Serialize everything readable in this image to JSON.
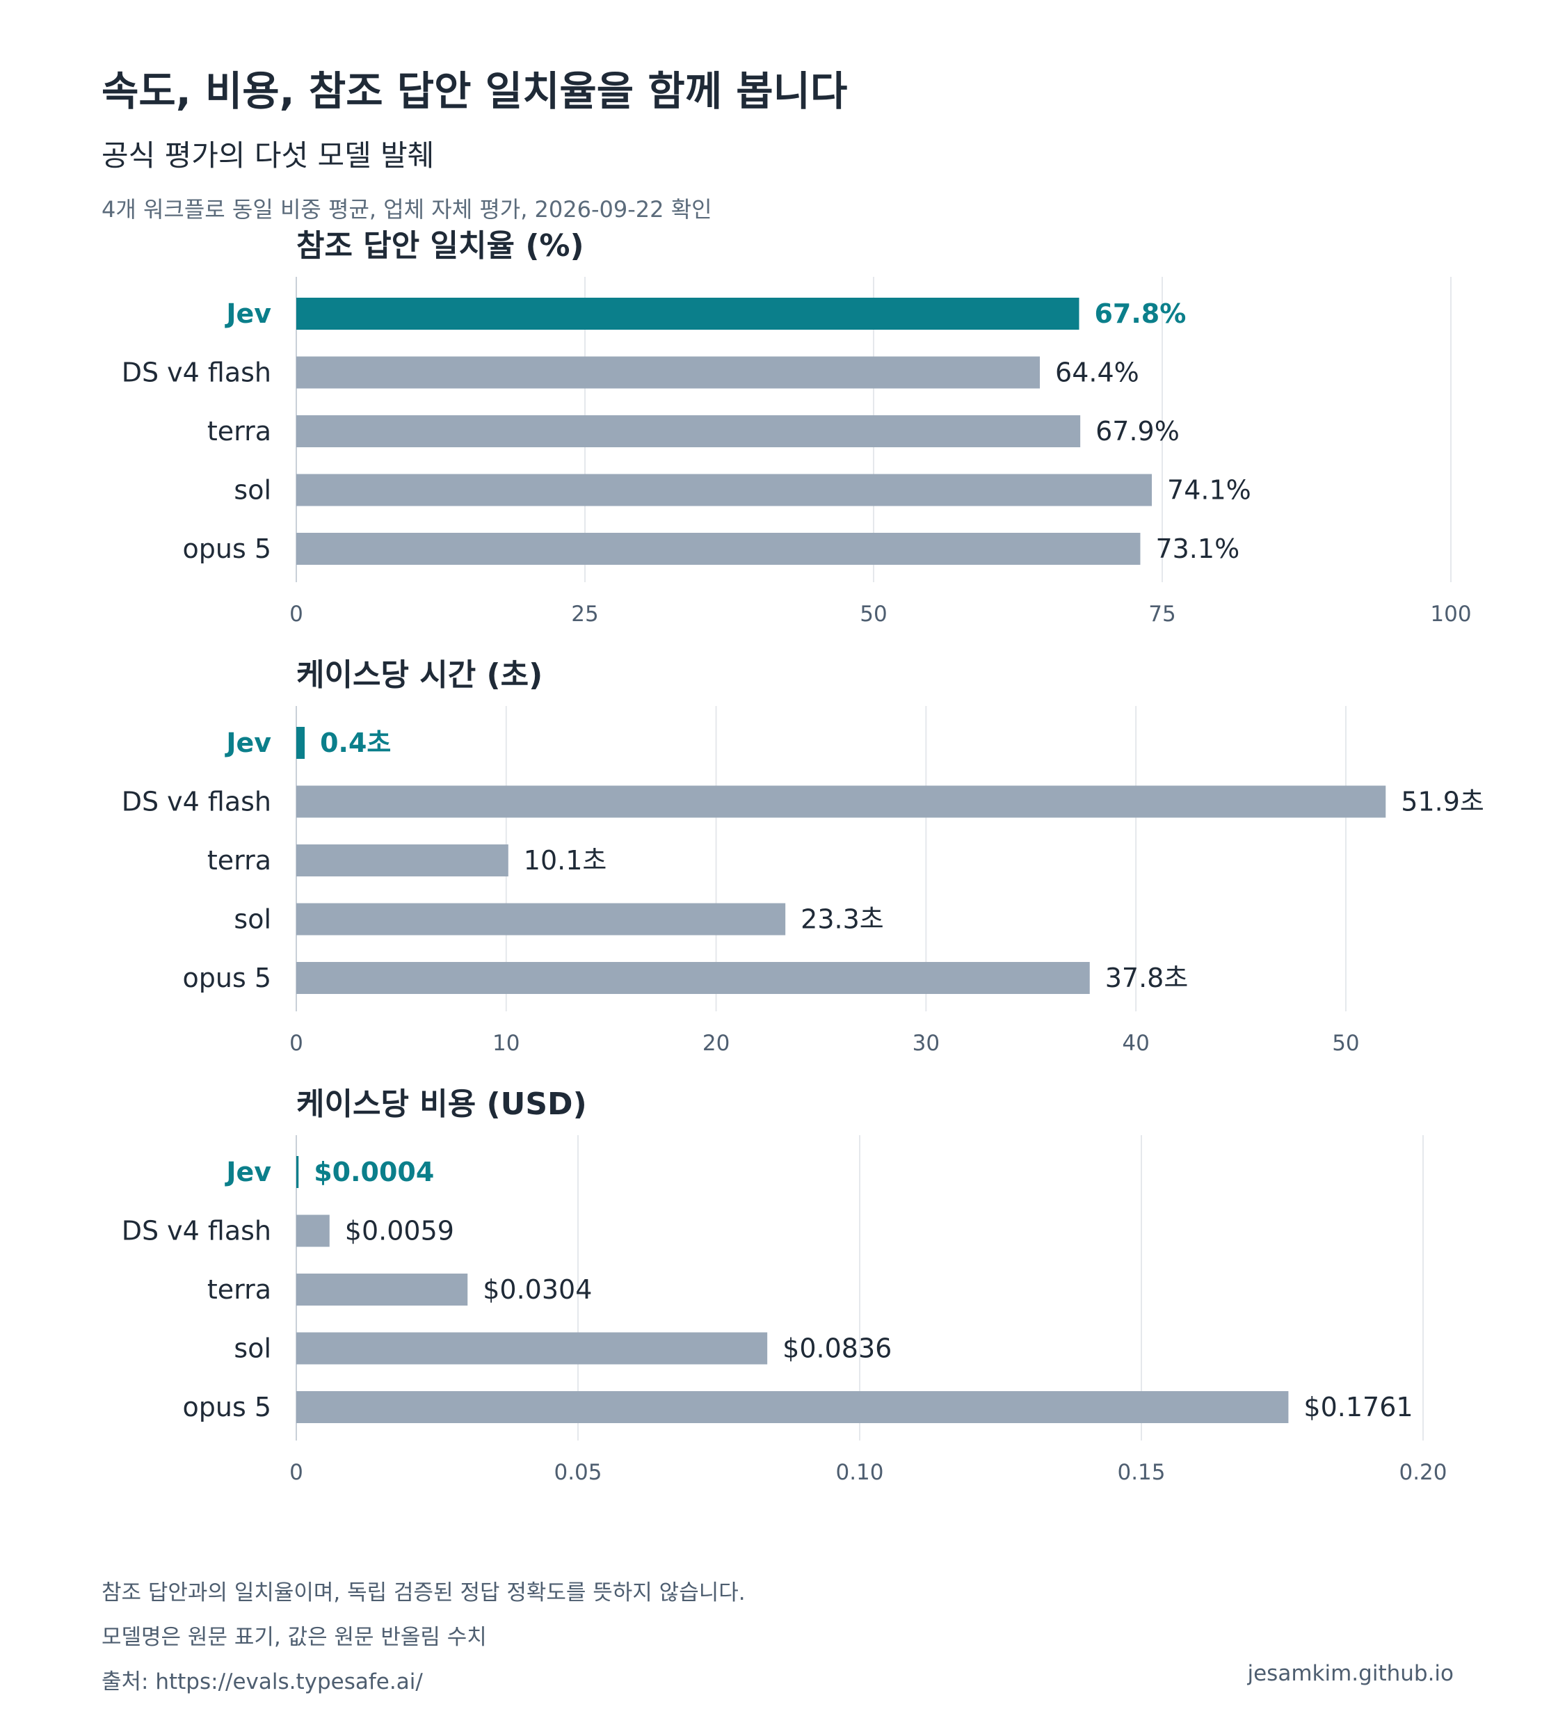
{
  "header": {
    "title": "속도, 비용, 참조 답안 일치율을 함께 봅니다",
    "subtitle": "공식 평가의 다섯 모델 발췌",
    "note": "4개 워크플로 동일 비중 평균, 업체 자체 평가, 2026-09-22 확인"
  },
  "colors": {
    "highlight": "#0b7f8b",
    "bar": "#9aa8b8",
    "grid": "#e5e8ec"
  },
  "chart_data": [
    {
      "type": "bar",
      "orientation": "horizontal",
      "title": "참조 답안 일치율 (%)",
      "categories": [
        "Jev",
        "DS v4 flash",
        "terra",
        "sol",
        "opus 5"
      ],
      "values": [
        67.8,
        64.4,
        67.9,
        74.1,
        73.1
      ],
      "labels": [
        "67.8%",
        "64.4%",
        "67.9%",
        "74.1%",
        "73.1%"
      ],
      "highlight": "Jev",
      "xlim": [
        0,
        100
      ],
      "ticks": [
        "0",
        "25",
        "50",
        "75",
        "100"
      ],
      "tick_values": [
        0,
        25,
        50,
        75,
        100
      ],
      "grid": true
    },
    {
      "type": "bar",
      "orientation": "horizontal",
      "title": "케이스당 시간 (초)",
      "categories": [
        "Jev",
        "DS v4 flash",
        "terra",
        "sol",
        "opus 5"
      ],
      "values": [
        0.4,
        51.9,
        10.1,
        23.3,
        37.8
      ],
      "labels": [
        "0.4초",
        "51.9초",
        "10.1초",
        "23.3초",
        "37.8초"
      ],
      "highlight": "Jev",
      "xlim": [
        0,
        56
      ],
      "ticks": [
        "0",
        "10",
        "20",
        "30",
        "40",
        "50"
      ],
      "tick_values": [
        0,
        10,
        20,
        30,
        40,
        50
      ],
      "grid": true
    },
    {
      "type": "bar",
      "orientation": "horizontal",
      "title": "케이스당 비용 (USD)",
      "categories": [
        "Jev",
        "DS v4 flash",
        "terra",
        "sol",
        "opus 5"
      ],
      "values": [
        0.0004,
        0.0059,
        0.0304,
        0.0836,
        0.1761
      ],
      "labels": [
        "$0.0004",
        "$0.0059",
        "$0.0304",
        "$0.0836",
        "$0.1761"
      ],
      "highlight": "Jev",
      "xlim": [
        0,
        0.2
      ],
      "ticks": [
        "0",
        "0.05",
        "0.10",
        "0.15",
        "0.20"
      ],
      "tick_values": [
        0,
        0.05,
        0.1,
        0.15,
        0.2
      ],
      "grid": true
    }
  ],
  "footer": {
    "line1": "참조 답안과의 일치율이며, 독립 검증된 정답 정확도를 뜻하지 않습니다.",
    "line2": "모델명은 원문 표기, 값은 원문 반올림 수치",
    "source": "출처: https://evals.typesafe.ai/",
    "credit": "jesamkim.github.io"
  }
}
